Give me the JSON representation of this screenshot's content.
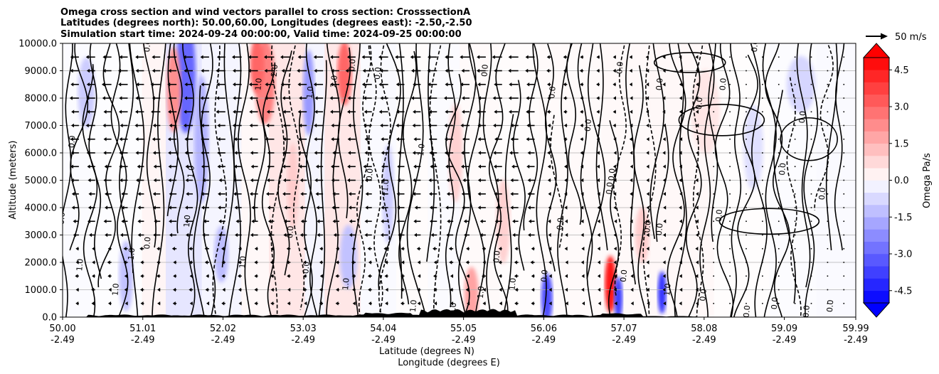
{
  "chart_data": {
    "type": "heatmap",
    "title_lines": [
      "Omega cross section and wind vectors parallel to cross section: CrosssectionA",
      "Latitudes (degrees north): 50.00,60.00, Longitudes (degrees east): -2.50,-2.50",
      "Simulation start time: 2024-09-24 00:00:00, Valid time: 2024-09-25 00:00:00"
    ],
    "xlabel_lines": [
      "Latitude (degrees N)",
      "Longitude (degrees E)"
    ],
    "ylabel": "Altitude (meters)",
    "colorbar_label": "Omega Pa/s",
    "quiver_key_label": "50 m/s",
    "x_ticks": [
      {
        "lat": "50.00",
        "lon": "-2.49",
        "v": 50.0
      },
      {
        "lat": "51.01",
        "lon": "-2.49",
        "v": 51.01
      },
      {
        "lat": "52.02",
        "lon": "-2.49",
        "v": 52.02
      },
      {
        "lat": "53.03",
        "lon": "-2.49",
        "v": 53.03
      },
      {
        "lat": "54.04",
        "lon": "-2.49",
        "v": 54.04
      },
      {
        "lat": "55.05",
        "lon": "-2.49",
        "v": 55.05
      },
      {
        "lat": "56.06",
        "lon": "-2.49",
        "v": 56.06
      },
      {
        "lat": "57.07",
        "lon": "-2.49",
        "v": 57.07
      },
      {
        "lat": "58.08",
        "lon": "-2.49",
        "v": 58.08
      },
      {
        "lat": "59.09",
        "lon": "-2.49",
        "v": 59.09
      },
      {
        "lat": "59.99",
        "lon": "-2.49",
        "v": 59.99
      }
    ],
    "xlim": [
      50.0,
      59.99
    ],
    "y_ticks": [
      "0.0",
      "1000.0",
      "2000.0",
      "3000.0",
      "4000.0",
      "5000.0",
      "6000.0",
      "7000.0",
      "8000.0",
      "9000.0",
      "10000.0"
    ],
    "ylim": [
      0,
      10000
    ],
    "colorbar_ticks": [
      "-4.5",
      "-3.0",
      "-1.5",
      "0.0",
      "1.5",
      "3.0",
      "4.5"
    ],
    "colorbar_range": [
      -5.0,
      5.0
    ],
    "colorbar_extend": "both",
    "colors": {
      "negative": "#0000ff",
      "positive": "#ff0000",
      "neutral": "#ffffff",
      "terrain": "#000000",
      "grid": "#b0b0b0"
    },
    "grid": true,
    "contour_labels": [
      {
        "text": "0.0",
        "x": 51.1,
        "y": 9900
      },
      {
        "text": "0.0",
        "x": 50.15,
        "y": 6400
      },
      {
        "text": "0.0",
        "x": 50.02,
        "y": 3600
      },
      {
        "text": "1.0",
        "x": 50.9,
        "y": 2300
      },
      {
        "text": "1.0",
        "x": 51.65,
        "y": 5300
      },
      {
        "text": "1.0",
        "x": 52.5,
        "y": 8500
      },
      {
        "text": "2.0",
        "x": 52.7,
        "y": 9000
      },
      {
        "text": "2.0",
        "x": 53.45,
        "y": 8600
      },
      {
        "text": "1.0",
        "x": 53.15,
        "y": 8200
      },
      {
        "text": "0.0",
        "x": 54.0,
        "y": 8900
      },
      {
        "text": "0.0",
        "x": 53.68,
        "y": 9200
      },
      {
        "text": "1.0",
        "x": 54.55,
        "y": 6100
      },
      {
        "text": "0.0",
        "x": 53.9,
        "y": 5200
      },
      {
        "text": "1.0",
        "x": 54.1,
        "y": 4800
      },
      {
        "text": "0.0",
        "x": 55.35,
        "y": 9000
      },
      {
        "text": "0.0",
        "x": 56.2,
        "y": 8200
      },
      {
        "text": "0.0",
        "x": 56.65,
        "y": 7000
      },
      {
        "text": "0.0",
        "x": 57.05,
        "y": 9100
      },
      {
        "text": "0.0",
        "x": 57.55,
        "y": 8500
      },
      {
        "text": "0.0",
        "x": 58.05,
        "y": 7800
      },
      {
        "text": "0.0",
        "x": 58.35,
        "y": 8500
      },
      {
        "text": "0.0",
        "x": 58.75,
        "y": 9900
      },
      {
        "text": "0.0",
        "x": 59.35,
        "y": 7300
      },
      {
        "text": "0.0",
        "x": 59.1,
        "y": 5400
      },
      {
        "text": "0.0",
        "x": 56.95,
        "y": 5200
      },
      {
        "text": "0.0",
        "x": 56.92,
        "y": 4700
      },
      {
        "text": "0.0",
        "x": 56.3,
        "y": 3400
      },
      {
        "text": "0.0",
        "x": 57.4,
        "y": 3300
      },
      {
        "text": "0.0",
        "x": 57.55,
        "y": 3200
      },
      {
        "text": "0.0",
        "x": 58.3,
        "y": 3700
      },
      {
        "text": "0.0",
        "x": 59.6,
        "y": 4500
      },
      {
        "text": "0.0",
        "x": 55.5,
        "y": 2200
      },
      {
        "text": "0.0",
        "x": 56.1,
        "y": 1500
      },
      {
        "text": "1.0",
        "x": 55.7,
        "y": 1200
      },
      {
        "text": "1.0",
        "x": 57.65,
        "y": 1000
      },
      {
        "text": "0.0",
        "x": 57.1,
        "y": 1500
      },
      {
        "text": "0.0",
        "x": 58.1,
        "y": 800
      },
      {
        "text": "0.0",
        "x": 58.65,
        "y": 200
      },
      {
        "text": "0.0",
        "x": 59.0,
        "y": 500
      },
      {
        "text": "0.0",
        "x": 59.4,
        "y": 200
      },
      {
        "text": "0.0",
        "x": 59.7,
        "y": 400
      },
      {
        "text": "1.0",
        "x": 52.3,
        "y": 2000
      },
      {
        "text": "0.0",
        "x": 53.1,
        "y": 1800
      },
      {
        "text": "1.0",
        "x": 53.6,
        "y": 1200
      },
      {
        "text": "0.0",
        "x": 52.9,
        "y": 3100
      },
      {
        "text": "1.0",
        "x": 51.6,
        "y": 3500
      },
      {
        "text": "0.0",
        "x": 51.1,
        "y": 2700
      },
      {
        "text": "1.0",
        "x": 50.7,
        "y": 1000
      },
      {
        "text": "1.0",
        "x": 50.25,
        "y": 1900
      },
      {
        "text": "1.0",
        "x": 54.45,
        "y": 400
      },
      {
        "text": "1.0",
        "x": 55.3,
        "y": 900
      },
      {
        "text": "0.0",
        "x": 54.95,
        "y": 300
      }
    ]
  }
}
